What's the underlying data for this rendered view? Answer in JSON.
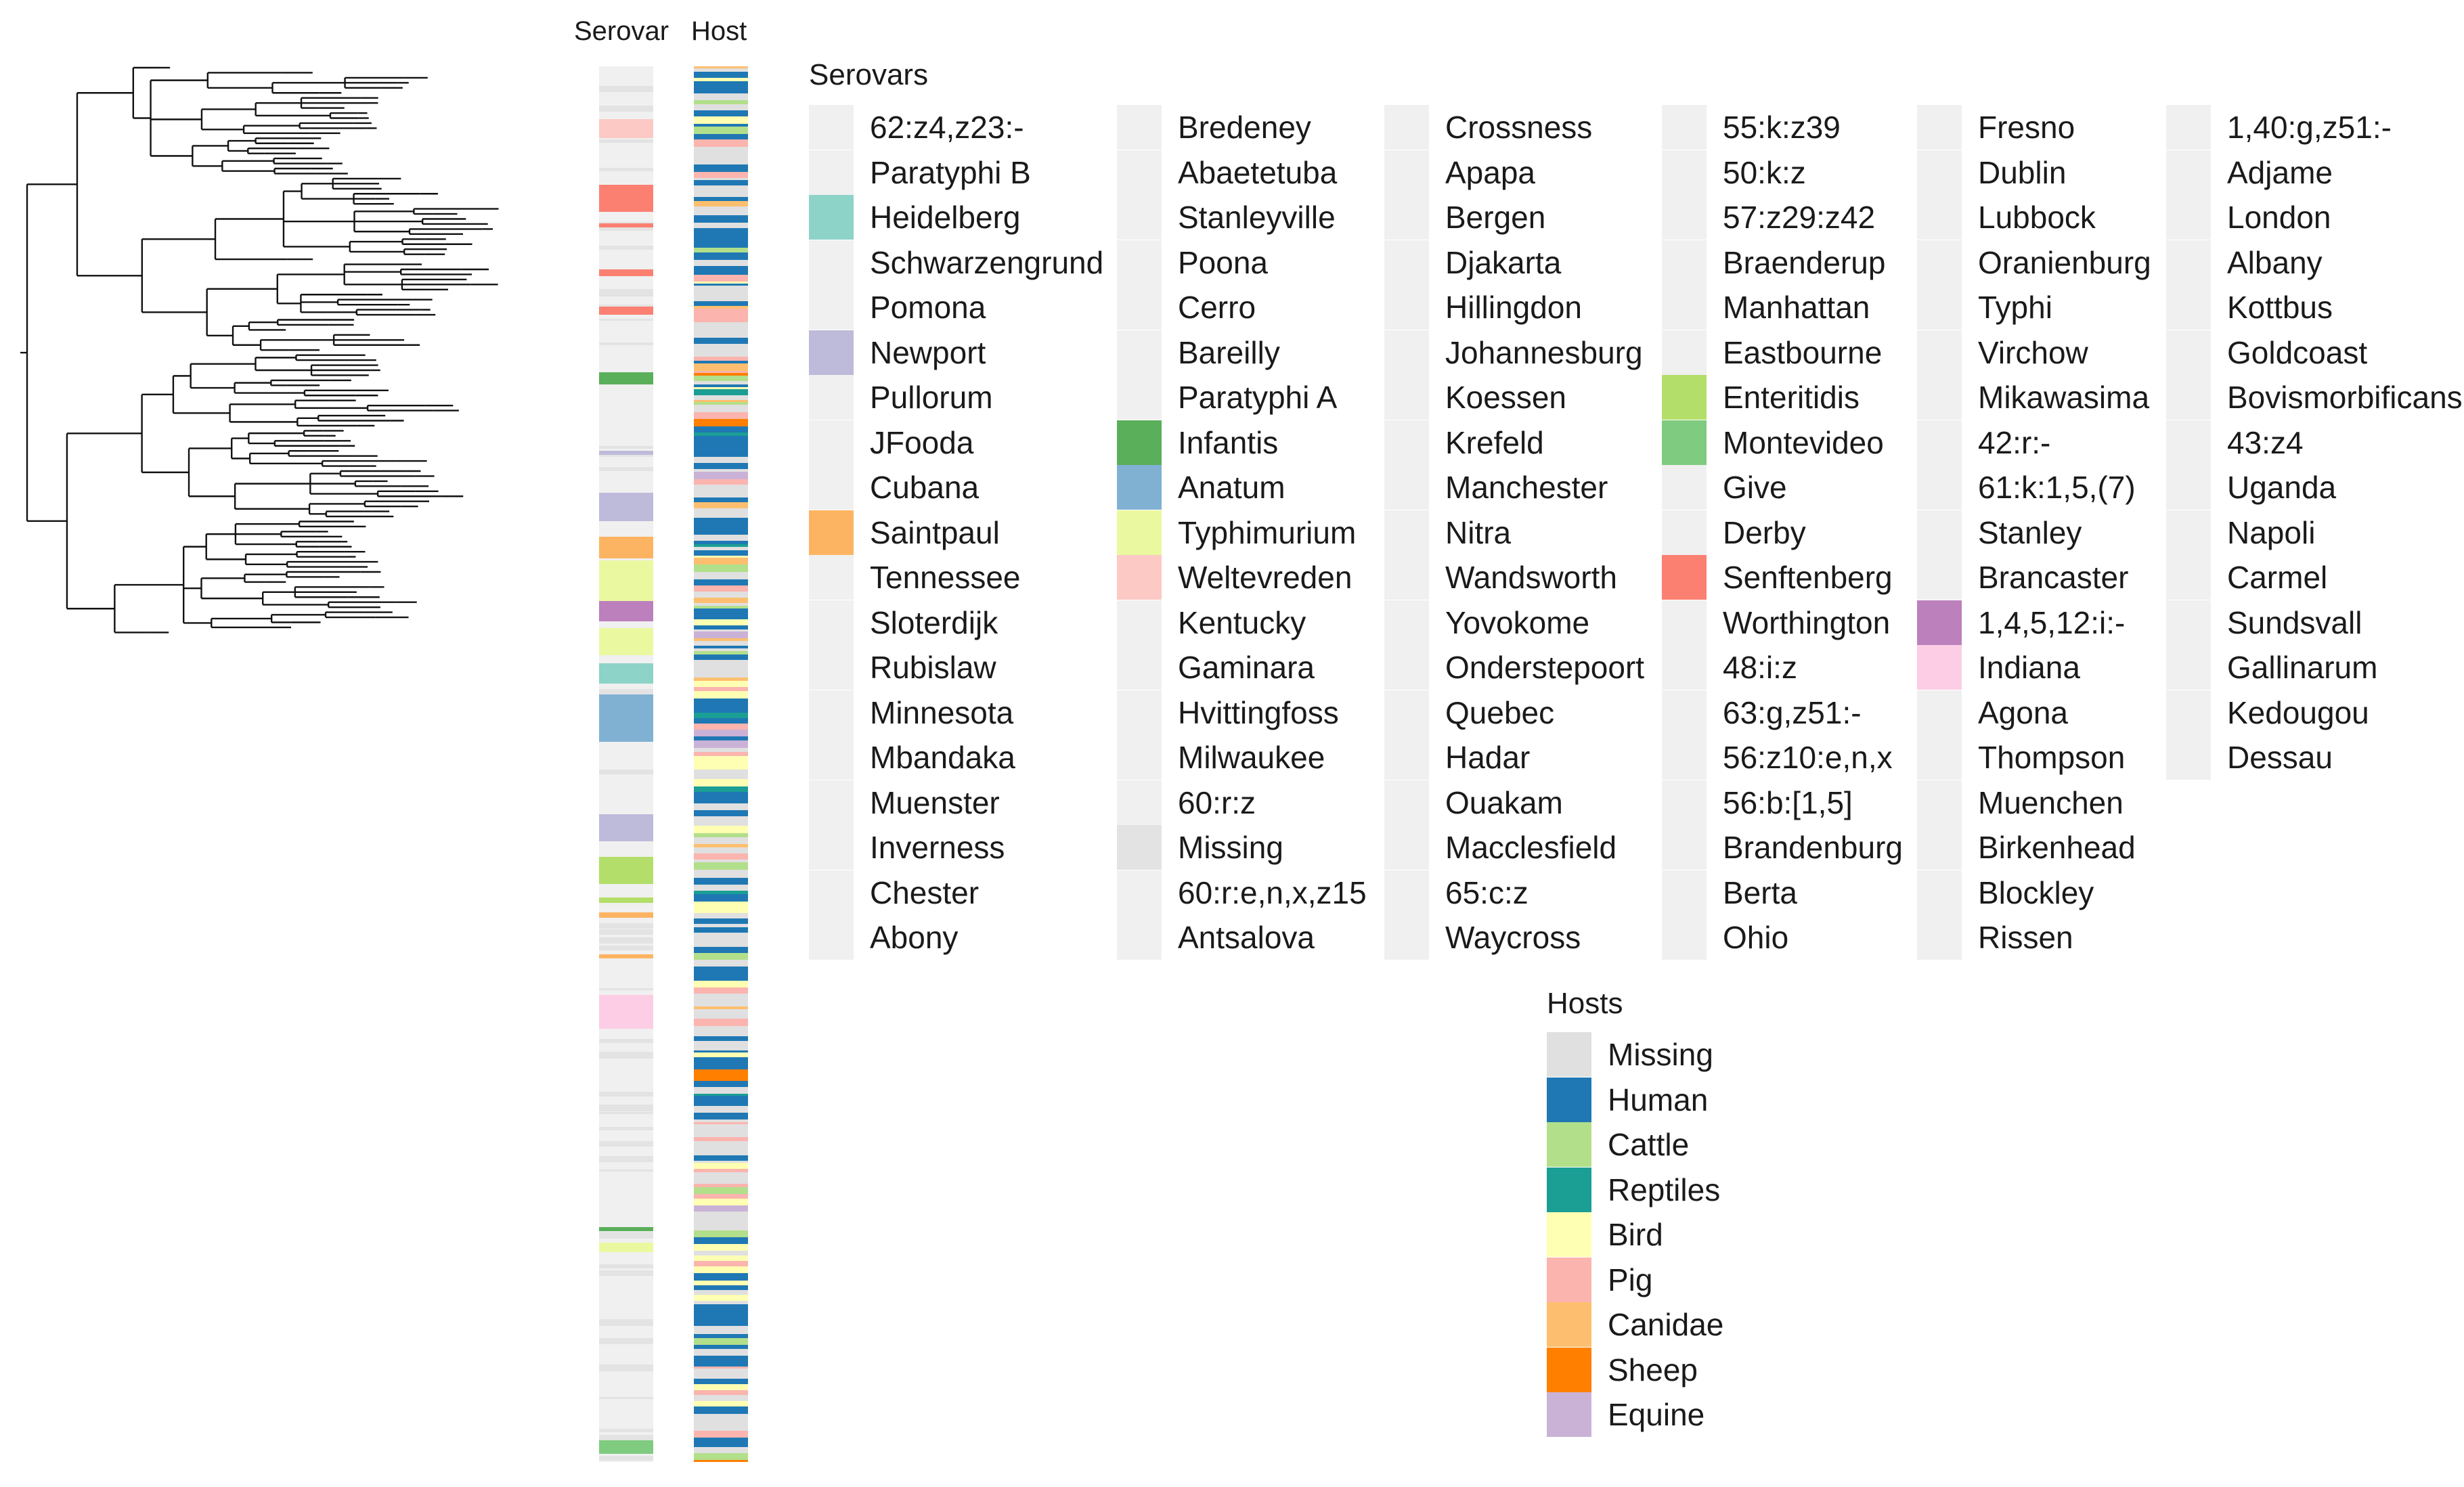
{
  "columns": {
    "serovar": "Serovar",
    "host": "Host"
  },
  "serovar_legend": {
    "title": "Serovars",
    "default_color": "#f0f0f0",
    "columns": [
      [
        {
          "label": "62:z4,z23:-",
          "color": "#f0f0f0"
        },
        {
          "label": "Paratyphi B",
          "color": "#f0f0f0"
        },
        {
          "label": "Heidelberg",
          "color": "#8dd3c7"
        },
        {
          "label": "Schwarzengrund",
          "color": "#f0f0f0"
        },
        {
          "label": "Pomona",
          "color": "#f0f0f0"
        },
        {
          "label": "Newport",
          "color": "#bebada"
        },
        {
          "label": "Pullorum",
          "color": "#f0f0f0"
        },
        {
          "label": "JFooda",
          "color": "#f0f0f0"
        },
        {
          "label": "Cubana",
          "color": "#f0f0f0"
        },
        {
          "label": "Saintpaul",
          "color": "#fdb462"
        },
        {
          "label": "Tennessee",
          "color": "#f0f0f0"
        },
        {
          "label": "Sloterdijk",
          "color": "#f0f0f0"
        },
        {
          "label": "Rubislaw",
          "color": "#f0f0f0"
        },
        {
          "label": "Minnesota",
          "color": "#f0f0f0"
        },
        {
          "label": "Mbandaka",
          "color": "#f0f0f0"
        },
        {
          "label": "Muenster",
          "color": "#f0f0f0"
        },
        {
          "label": "Inverness",
          "color": "#f0f0f0"
        },
        {
          "label": "Chester",
          "color": "#f0f0f0"
        },
        {
          "label": "Abony",
          "color": "#f0f0f0"
        }
      ],
      [
        {
          "label": "Bredeney",
          "color": "#f0f0f0"
        },
        {
          "label": "Abaetetuba",
          "color": "#f0f0f0"
        },
        {
          "label": "Stanleyville",
          "color": "#f0f0f0"
        },
        {
          "label": "Poona",
          "color": "#f0f0f0"
        },
        {
          "label": "Cerro",
          "color": "#f0f0f0"
        },
        {
          "label": "Bareilly",
          "color": "#f0f0f0"
        },
        {
          "label": "Paratyphi A",
          "color": "#f0f0f0"
        },
        {
          "label": "Infantis",
          "color": "#5aaf5a"
        },
        {
          "label": "Anatum",
          "color": "#80b1d3"
        },
        {
          "label": "Typhimurium",
          "color": "#eaf9a0"
        },
        {
          "label": "Weltevreden",
          "color": "#fcc9c4"
        },
        {
          "label": "Kentucky",
          "color": "#f0f0f0"
        },
        {
          "label": "Gaminara",
          "color": "#f0f0f0"
        },
        {
          "label": "Hvittingfoss",
          "color": "#f0f0f0"
        },
        {
          "label": "Milwaukee",
          "color": "#f0f0f0"
        },
        {
          "label": "60:r:z",
          "color": "#f0f0f0"
        },
        {
          "label": "Missing",
          "color": "#e3e3e3"
        },
        {
          "label": "60:r:e,n,x,z15",
          "color": "#f0f0f0"
        },
        {
          "label": "Antsalova",
          "color": "#f0f0f0"
        }
      ],
      [
        {
          "label": "Crossness",
          "color": "#f0f0f0"
        },
        {
          "label": "Apapa",
          "color": "#f0f0f0"
        },
        {
          "label": "Bergen",
          "color": "#f0f0f0"
        },
        {
          "label": "Djakarta",
          "color": "#f0f0f0"
        },
        {
          "label": "Hillingdon",
          "color": "#f0f0f0"
        },
        {
          "label": "Johannesburg",
          "color": "#f0f0f0"
        },
        {
          "label": "Koessen",
          "color": "#f0f0f0"
        },
        {
          "label": "Krefeld",
          "color": "#f0f0f0"
        },
        {
          "label": "Manchester",
          "color": "#f0f0f0"
        },
        {
          "label": "Nitra",
          "color": "#f0f0f0"
        },
        {
          "label": "Wandsworth",
          "color": "#f0f0f0"
        },
        {
          "label": "Yovokome",
          "color": "#f0f0f0"
        },
        {
          "label": "Onderstepoort",
          "color": "#f0f0f0"
        },
        {
          "label": "Quebec",
          "color": "#f0f0f0"
        },
        {
          "label": "Hadar",
          "color": "#f0f0f0"
        },
        {
          "label": "Ouakam",
          "color": "#f0f0f0"
        },
        {
          "label": "Macclesfield",
          "color": "#f0f0f0"
        },
        {
          "label": "65:c:z",
          "color": "#f0f0f0"
        },
        {
          "label": "Waycross",
          "color": "#f0f0f0"
        }
      ],
      [
        {
          "label": "55:k:z39",
          "color": "#f0f0f0"
        },
        {
          "label": "50:k:z",
          "color": "#f0f0f0"
        },
        {
          "label": "57:z29:z42",
          "color": "#f0f0f0"
        },
        {
          "label": "Braenderup",
          "color": "#f0f0f0"
        },
        {
          "label": "Manhattan",
          "color": "#f0f0f0"
        },
        {
          "label": "Eastbourne",
          "color": "#f0f0f0"
        },
        {
          "label": "Enteritidis",
          "color": "#b3de69"
        },
        {
          "label": "Montevideo",
          "color": "#7fcb7f"
        },
        {
          "label": "Give",
          "color": "#f0f0f0"
        },
        {
          "label": "Derby",
          "color": "#f0f0f0"
        },
        {
          "label": "Senftenberg",
          "color": "#fb8072"
        },
        {
          "label": "Worthington",
          "color": "#f0f0f0"
        },
        {
          "label": "48:i:z",
          "color": "#f0f0f0"
        },
        {
          "label": "63:g,z51:-",
          "color": "#f0f0f0"
        },
        {
          "label": "56:z10:e,n,x",
          "color": "#f0f0f0"
        },
        {
          "label": "56:b:[1,5]",
          "color": "#f0f0f0"
        },
        {
          "label": "Brandenburg",
          "color": "#f0f0f0"
        },
        {
          "label": "Berta",
          "color": "#f0f0f0"
        },
        {
          "label": "Ohio",
          "color": "#f0f0f0"
        }
      ],
      [
        {
          "label": "Fresno",
          "color": "#f0f0f0"
        },
        {
          "label": "Dublin",
          "color": "#f0f0f0"
        },
        {
          "label": "Lubbock",
          "color": "#f0f0f0"
        },
        {
          "label": "Oranienburg",
          "color": "#f0f0f0"
        },
        {
          "label": "Typhi",
          "color": "#f0f0f0"
        },
        {
          "label": "Virchow",
          "color": "#f0f0f0"
        },
        {
          "label": "Mikawasima",
          "color": "#f0f0f0"
        },
        {
          "label": "42:r:-",
          "color": "#f0f0f0"
        },
        {
          "label": "61:k:1,5,(7)",
          "color": "#f0f0f0"
        },
        {
          "label": "Stanley",
          "color": "#f0f0f0"
        },
        {
          "label": "Brancaster",
          "color": "#f0f0f0"
        },
        {
          "label": "1,4,5,12:i:-",
          "color": "#bc80bd"
        },
        {
          "label": "Indiana",
          "color": "#fccde5"
        },
        {
          "label": "Agona",
          "color": "#f0f0f0"
        },
        {
          "label": "Thompson",
          "color": "#f0f0f0"
        },
        {
          "label": "Muenchen",
          "color": "#f0f0f0"
        },
        {
          "label": "Birkenhead",
          "color": "#f0f0f0"
        },
        {
          "label": "Blockley",
          "color": "#f0f0f0"
        },
        {
          "label": "Rissen",
          "color": "#f0f0f0"
        }
      ],
      [
        {
          "label": "1,40:g,z51:-",
          "color": "#f0f0f0"
        },
        {
          "label": "Adjame",
          "color": "#f0f0f0"
        },
        {
          "label": "London",
          "color": "#f0f0f0"
        },
        {
          "label": "Albany",
          "color": "#f0f0f0"
        },
        {
          "label": "Kottbus",
          "color": "#f0f0f0"
        },
        {
          "label": "Goldcoast",
          "color": "#f0f0f0"
        },
        {
          "label": "Bovismorbificans",
          "color": "#f0f0f0"
        },
        {
          "label": "43:z4",
          "color": "#f0f0f0"
        },
        {
          "label": "Uganda",
          "color": "#f0f0f0"
        },
        {
          "label": "Napoli",
          "color": "#f0f0f0"
        },
        {
          "label": "Carmel",
          "color": "#f0f0f0"
        },
        {
          "label": "Sundsvall",
          "color": "#f0f0f0"
        },
        {
          "label": "Gallinarum",
          "color": "#f0f0f0"
        },
        {
          "label": "Kedougou",
          "color": "#f0f0f0"
        },
        {
          "label": "Dessau",
          "color": "#f0f0f0"
        }
      ]
    ]
  },
  "host_legend": {
    "title": "Hosts",
    "items": [
      {
        "label": "Missing",
        "color": "#e0e0e0"
      },
      {
        "label": "Human",
        "color": "#1f78b4"
      },
      {
        "label": "Cattle",
        "color": "#b2df8a"
      },
      {
        "label": "Reptiles",
        "color": "#1b9e94"
      },
      {
        "label": "Bird",
        "color": "#ffffb3"
      },
      {
        "label": "Pig",
        "color": "#fbb4ae"
      },
      {
        "label": "Canidae",
        "color": "#fdbf6f"
      },
      {
        "label": "Sheep",
        "color": "#ff7f00"
      },
      {
        "label": "Equine",
        "color": "#cab2d6"
      }
    ]
  }
}
